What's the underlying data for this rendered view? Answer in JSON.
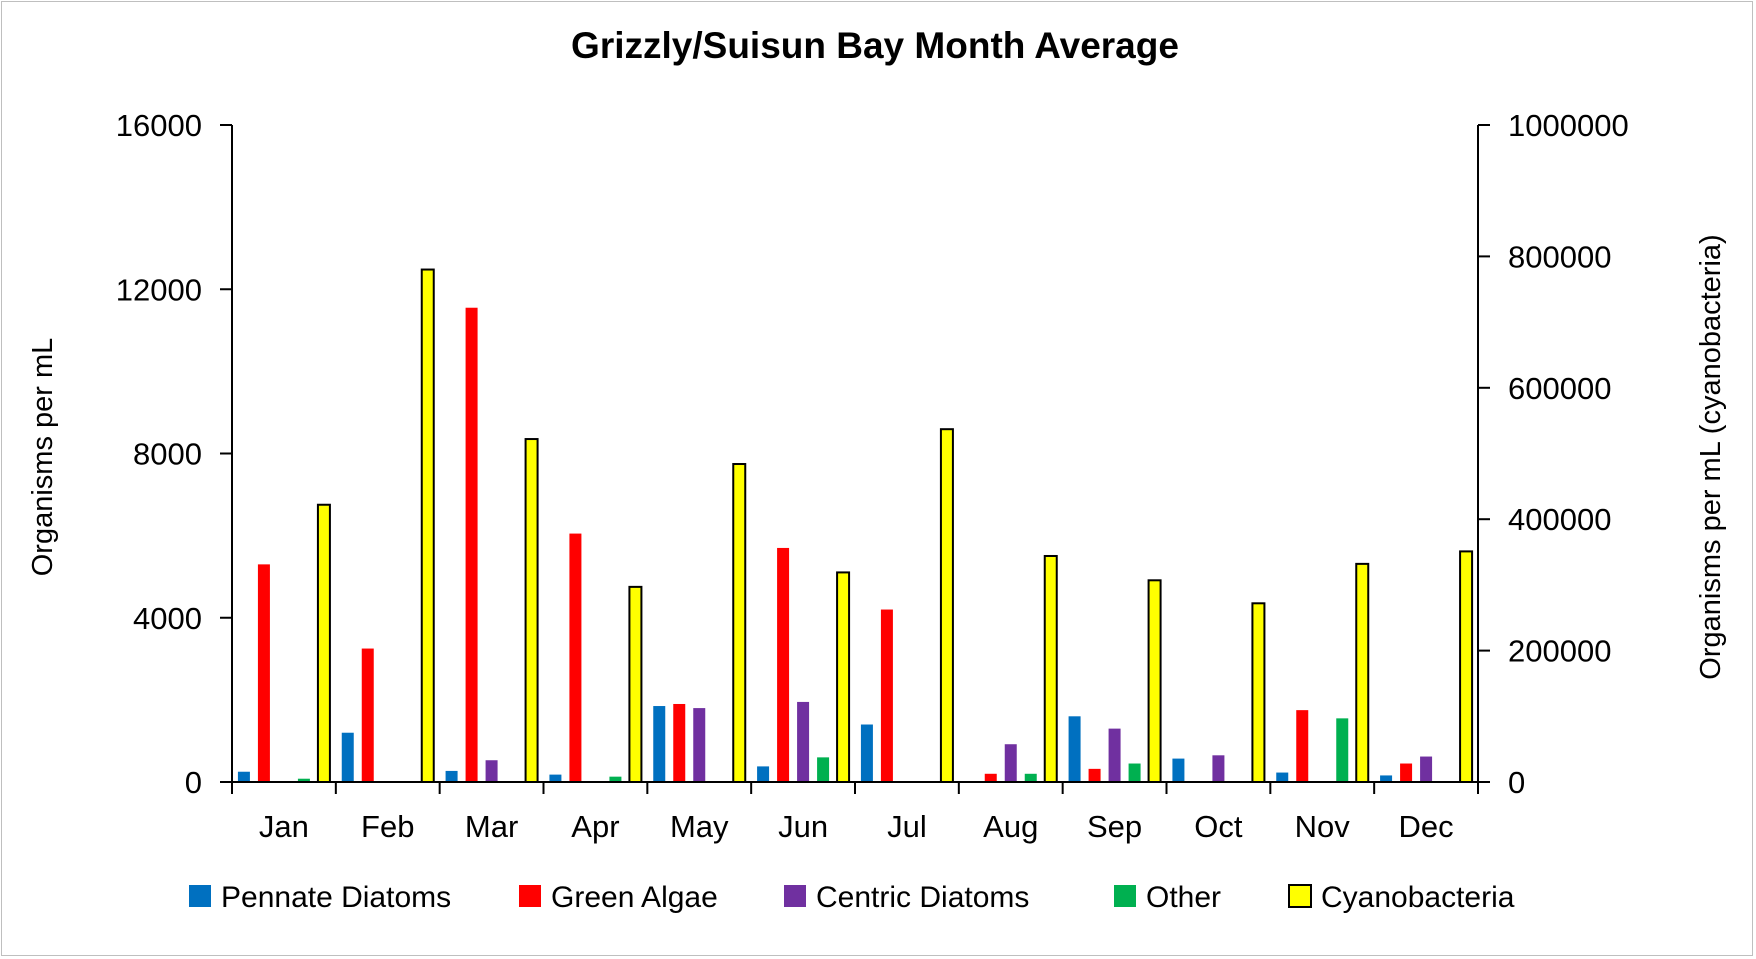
{
  "chart_data": {
    "type": "bar",
    "title": "Grizzly/Suisun Bay Month Average",
    "ylabel": "Organisms per mL",
    "y2label": "Organisms per mL (cyanobacteria)",
    "categories": [
      "Jan",
      "Feb",
      "Mar",
      "Apr",
      "May",
      "Jun",
      "Jul",
      "Aug",
      "Sep",
      "Oct",
      "Nov",
      "Dec"
    ],
    "ylim": [
      0,
      16000
    ],
    "yticks": [
      0,
      4000,
      8000,
      12000,
      16000
    ],
    "y2lim": [
      0,
      1000000
    ],
    "y2ticks": [
      0,
      200000,
      400000,
      600000,
      800000,
      1000000
    ],
    "legend_position": "bottom",
    "grid": false,
    "series": [
      {
        "name": "Pennate Diatoms",
        "axis": "left",
        "color": "#0070C0",
        "values": [
          250,
          1200,
          270,
          180,
          1850,
          380,
          1400,
          0,
          1600,
          570,
          230,
          160
        ]
      },
      {
        "name": "Green Algae",
        "axis": "left",
        "color": "#FF0000",
        "values": [
          5300,
          3250,
          11550,
          6050,
          1900,
          5700,
          4200,
          200,
          320,
          0,
          1750,
          450
        ]
      },
      {
        "name": "Centric Diatoms",
        "axis": "left",
        "color": "#7030A0",
        "values": [
          0,
          0,
          530,
          0,
          1800,
          1950,
          0,
          920,
          1300,
          650,
          0,
          620
        ]
      },
      {
        "name": "Other",
        "axis": "left",
        "color": "#00B050",
        "values": [
          80,
          0,
          0,
          130,
          0,
          600,
          0,
          200,
          450,
          0,
          1550,
          0
        ]
      },
      {
        "name": "Cyanobacteria",
        "axis": "right",
        "color": "#FFFF00",
        "values": [
          422000,
          780000,
          522000,
          297000,
          484000,
          319000,
          537000,
          344000,
          307000,
          272000,
          332000,
          351000
        ]
      }
    ]
  }
}
